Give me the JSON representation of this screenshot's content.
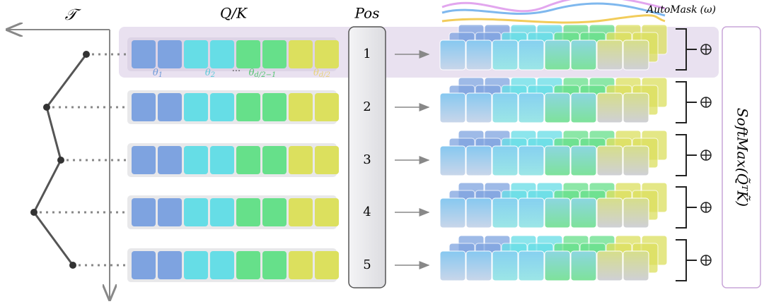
{
  "axis_label": "𝒯",
  "qk_label": "Q/K",
  "pos_label": "Pos",
  "positions": [
    "1",
    "2",
    "3",
    "4",
    "5"
  ],
  "theta_labels": [
    {
      "base": "θ",
      "sub": "1"
    },
    {
      "base": "θ",
      "sub": "2"
    },
    {
      "base": "θ",
      "sub": "d/2−1"
    },
    {
      "base": "θ",
      "sub": "d/2"
    }
  ],
  "ellipsis": "···",
  "automask": {
    "name": "AutoMask",
    "arg": "(ω)"
  },
  "softmax": "SoftMax(Q̃ᵀK̃)"
}
